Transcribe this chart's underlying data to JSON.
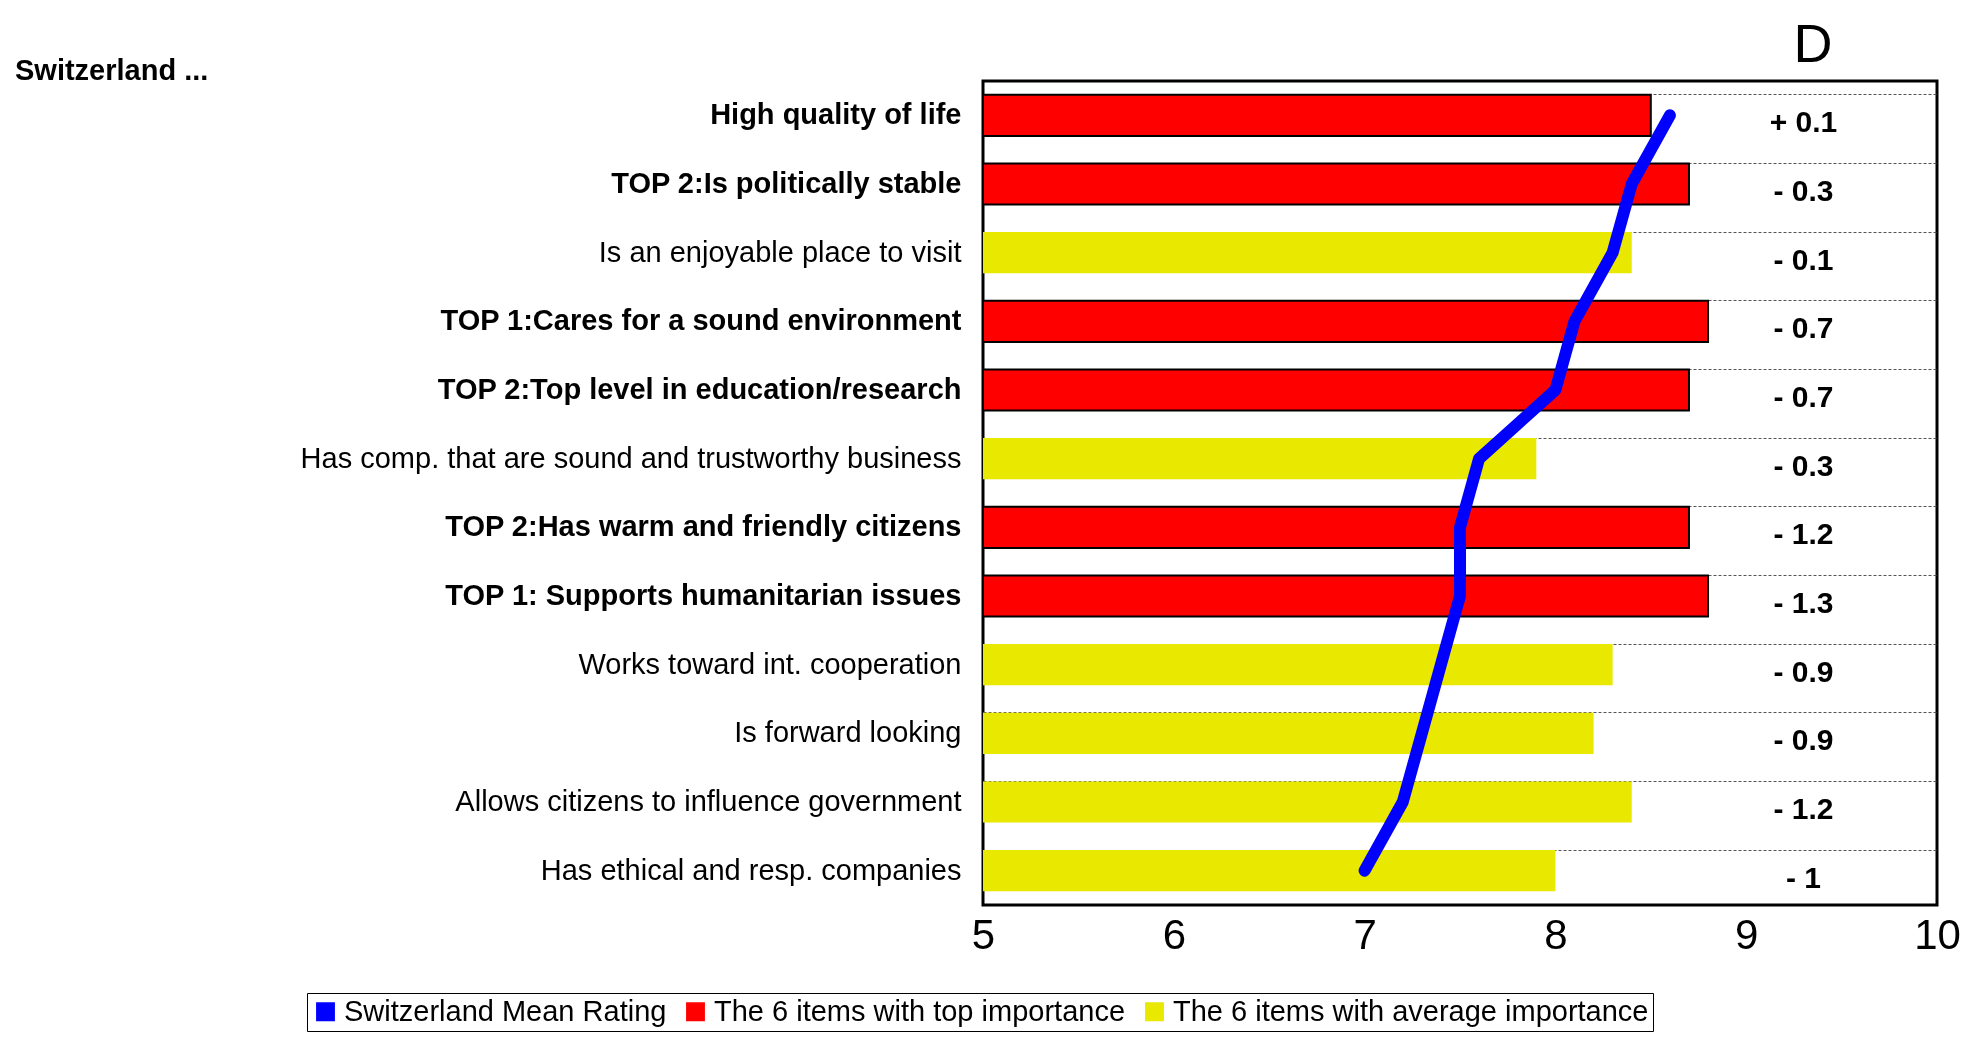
{
  "chart_data": {
    "type": "bar",
    "orientation": "horizontal",
    "title": "Switzerland ...",
    "categories": [
      "High quality of life",
      "TOP 2:Is politically stable",
      "Is an enjoyable place to visit",
      "TOP 1:Cares for a sound environment",
      "TOP 2:Top level in education/research",
      "Has comp. that are sound and trustworthy business",
      "TOP 2:Has warm and friendly citizens",
      "TOP 1: Supports humanitarian issues",
      "Works toward int. cooperation",
      "Is forward looking",
      "Allows citizens to influence government",
      "Has ethical and resp. companies"
    ],
    "series": [
      {
        "name": "Switzerland Mean Rating",
        "type": "line",
        "color": "#0000ff",
        "values": [
          8.6,
          8.4,
          8.3,
          8.1,
          8.0,
          7.6,
          7.5,
          7.5,
          7.4,
          7.3,
          7.2,
          7.0
        ]
      },
      {
        "name": "The 6 items with top importance",
        "color": "#ff0000",
        "values": [
          8.5,
          8.7,
          null,
          8.8,
          8.7,
          null,
          8.7,
          8.8,
          null,
          null,
          null,
          null
        ]
      },
      {
        "name": "The 6 items with average importance",
        "color": "#e8e800",
        "values": [
          null,
          null,
          8.4,
          null,
          null,
          7.9,
          null,
          null,
          8.3,
          8.2,
          8.4,
          8.0
        ]
      }
    ],
    "xlim": [
      5,
      10
    ],
    "xticks": [
      5,
      6,
      7,
      8,
      9,
      10
    ],
    "grid": "y",
    "legend": "bottom",
    "annotations": [
      "D",
      "+ 0.1",
      "- 0.3",
      "- 0.1",
      "- 0.7",
      "- 0.7",
      "- 0.3",
      "- 1.2",
      "- 1.3",
      "- 0.9",
      "- 0.9",
      "- 1.2",
      "- 1"
    ]
  }
}
